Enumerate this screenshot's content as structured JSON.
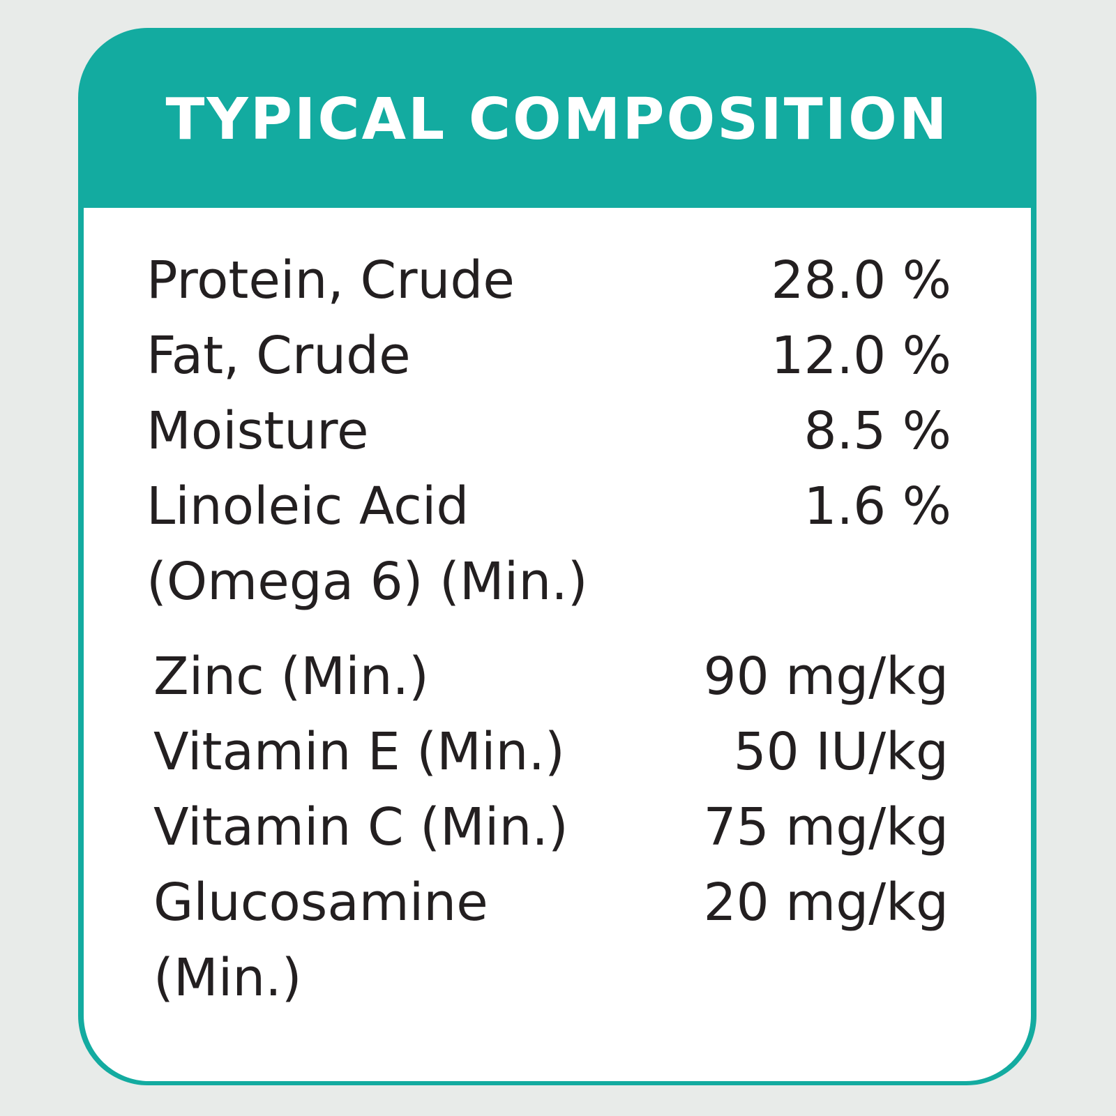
{
  "title": "TYPICAL COMPOSITION",
  "group1": [
    {
      "label": "Protein, Crude",
      "value": "28.0 %"
    },
    {
      "label": "Fat, Crude",
      "value": "12.0 %"
    },
    {
      "label": "Moisture",
      "value": "8.5 %"
    },
    {
      "label": "Linoleic Acid",
      "value": "1.6 %"
    },
    {
      "label": "(Omega 6) (Min.)",
      "value": ""
    }
  ],
  "group2": [
    {
      "label": "Zinc (Min.)",
      "value": "90 mg/kg"
    },
    {
      "label": "Vitamin E (Min.)",
      "value": "50 IU/kg"
    },
    {
      "label": "Vitamin C (Min.)",
      "value": "75 mg/kg"
    },
    {
      "label": "Glucosamine",
      "value": "20 mg/kg"
    },
    {
      "label": "(Min.)",
      "value": ""
    }
  ],
  "colors": {
    "accent": "#13aba0",
    "background": "#e8ebe9",
    "text": "#231f20",
    "panel": "#ffffff"
  }
}
